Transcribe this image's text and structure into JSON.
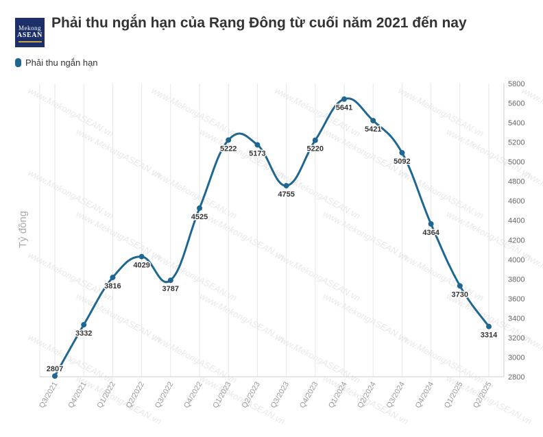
{
  "header": {
    "title": "Phải thu ngắn hạn của Rạng Đông từ cuối năm 2021 đến nay",
    "logo_line1": "Mekong",
    "logo_line2": "ASEAN"
  },
  "watermark_text": "www.MekongASEAN.vn",
  "colors": {
    "series": "#1f6690",
    "grid": "#e6e6e6",
    "axis_text": "#999999",
    "label_text": "#333333"
  },
  "chart_data": {
    "type": "line",
    "title": "Phải thu ngắn hạn của Rạng Đông từ cuối năm 2021 đến nay",
    "ylabel": "Tỷ đồng",
    "xlabel": "",
    "categories": [
      "Q3/2021",
      "Q4/2021",
      "Q1/2022",
      "Q2/2022",
      "Q3/2022",
      "Q4/2022",
      "Q1/2023",
      "Q2/2023",
      "Q3/2023",
      "Q4/2023",
      "Q1/2024",
      "Q2/2024",
      "Q3/2024",
      "Q4/2024",
      "Q1/2025",
      "Q2/2025"
    ],
    "series": [
      {
        "name": "Phải thu ngắn hạn",
        "values": [
          2807,
          3332,
          3816,
          4029,
          3787,
          4525,
          5222,
          5173,
          4755,
          5220,
          5641,
          5421,
          5092,
          4364,
          3730,
          3314
        ]
      }
    ],
    "ylim": [
      2800,
      5800
    ],
    "yticks": [
      2800,
      3000,
      3200,
      3400,
      3600,
      3800,
      4000,
      4200,
      4400,
      4600,
      4800,
      5000,
      5200,
      5400,
      5600,
      5800
    ],
    "y_axis_position": "right",
    "legend_position": "top-left",
    "grid": "vertical",
    "smooth": true
  }
}
